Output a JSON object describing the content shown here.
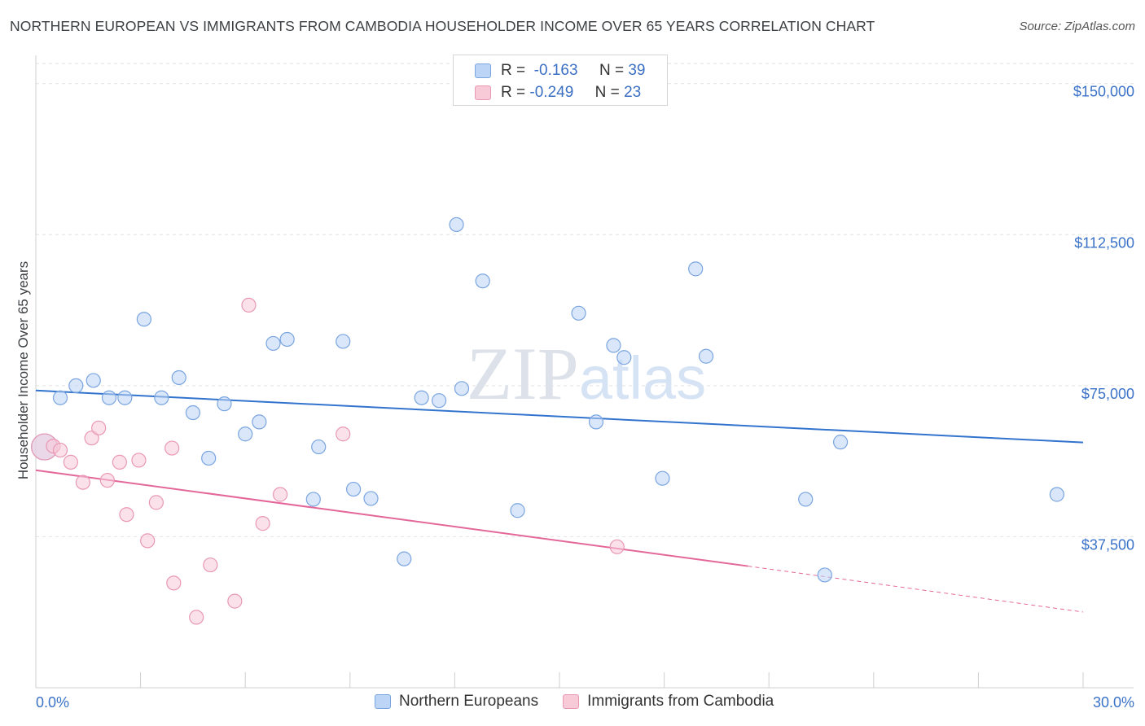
{
  "chart_data": {
    "type": "scatter",
    "title": "NORTHERN EUROPEAN VS IMMIGRANTS FROM CAMBODIA HOUSEHOLDER INCOME OVER 65 YEARS CORRELATION CHART",
    "source": "Source: ZipAtlas.com",
    "watermark": "ZIPatlas",
    "xlabel": "",
    "ylabel": "Householder Income Over 65 years",
    "xlim": [
      0,
      30
    ],
    "ylim": [
      0,
      155000
    ],
    "x_tick_labels": {
      "left": "0.0%",
      "right": "30.0%"
    },
    "y_ticks": [
      {
        "value": 37500,
        "label": "$37,500"
      },
      {
        "value": 75000,
        "label": "$75,000"
      },
      {
        "value": 112500,
        "label": "$112,500"
      },
      {
        "value": 150000,
        "label": "$150,000"
      }
    ],
    "grid": "horizontal-dashed",
    "legend_stats": [
      {
        "r_label": "R =",
        "r_value": "-0.163",
        "n_label": "N =",
        "n_value": "39"
      },
      {
        "r_label": "R =",
        "r_value": "-0.249",
        "n_label": "N =",
        "n_value": "23"
      }
    ],
    "series": [
      {
        "name": "Northern Europeans",
        "color": "#7aa5e0",
        "fill": "#bcd4f5",
        "trend": {
          "x0": 0,
          "y0": 73800,
          "x1": 30,
          "y1": 60900
        },
        "points": [
          [
            0.25,
            59800,
            "big"
          ],
          [
            0.7,
            72000
          ],
          [
            1.15,
            75000
          ],
          [
            1.65,
            76300
          ],
          [
            2.1,
            72000
          ],
          [
            2.55,
            72000
          ],
          [
            3.1,
            91500
          ],
          [
            3.6,
            72000
          ],
          [
            4.1,
            77000
          ],
          [
            4.5,
            68300
          ],
          [
            4.95,
            57000
          ],
          [
            5.4,
            70500
          ],
          [
            6.0,
            63000
          ],
          [
            6.4,
            66000
          ],
          [
            6.8,
            85500
          ],
          [
            7.2,
            86500
          ],
          [
            7.95,
            46800
          ],
          [
            8.1,
            59800
          ],
          [
            8.8,
            86000
          ],
          [
            9.1,
            49300
          ],
          [
            9.6,
            47000
          ],
          [
            10.55,
            32000
          ],
          [
            11.05,
            72000
          ],
          [
            11.55,
            71300
          ],
          [
            12.05,
            115000
          ],
          [
            12.2,
            74300
          ],
          [
            12.8,
            101000
          ],
          [
            13.8,
            44000
          ],
          [
            15.55,
            93000
          ],
          [
            16.05,
            66000
          ],
          [
            16.55,
            85000
          ],
          [
            16.85,
            82000
          ],
          [
            17.95,
            52000
          ],
          [
            18.9,
            104000
          ],
          [
            19.2,
            82300
          ],
          [
            22.05,
            46800
          ],
          [
            22.6,
            28000
          ],
          [
            23.05,
            61000
          ],
          [
            29.25,
            48000
          ]
        ]
      },
      {
        "name": "Immigrants from Cambodia",
        "color": "#e998b4",
        "fill": "#f8cad8",
        "trend": {
          "x0": 0,
          "y0": 54000,
          "x1": 20.4,
          "y1": 30200,
          "dash_x1": 30,
          "dash_y1": 18800
        },
        "points": [
          [
            0.25,
            59800,
            "big"
          ],
          [
            0.5,
            60000
          ],
          [
            0.7,
            59000
          ],
          [
            1.0,
            56000
          ],
          [
            1.35,
            51000
          ],
          [
            1.6,
            62000
          ],
          [
            1.8,
            64500
          ],
          [
            2.05,
            51500
          ],
          [
            2.4,
            56000
          ],
          [
            2.6,
            43000
          ],
          [
            2.95,
            56500
          ],
          [
            3.2,
            36500
          ],
          [
            3.45,
            46000
          ],
          [
            3.9,
            59500
          ],
          [
            3.95,
            26000
          ],
          [
            4.6,
            17500
          ],
          [
            5.0,
            30500
          ],
          [
            5.7,
            21500
          ],
          [
            6.1,
            95000
          ],
          [
            6.5,
            40800
          ],
          [
            7.0,
            48000
          ],
          [
            8.8,
            63000
          ],
          [
            16.65,
            35000
          ]
        ]
      }
    ]
  }
}
